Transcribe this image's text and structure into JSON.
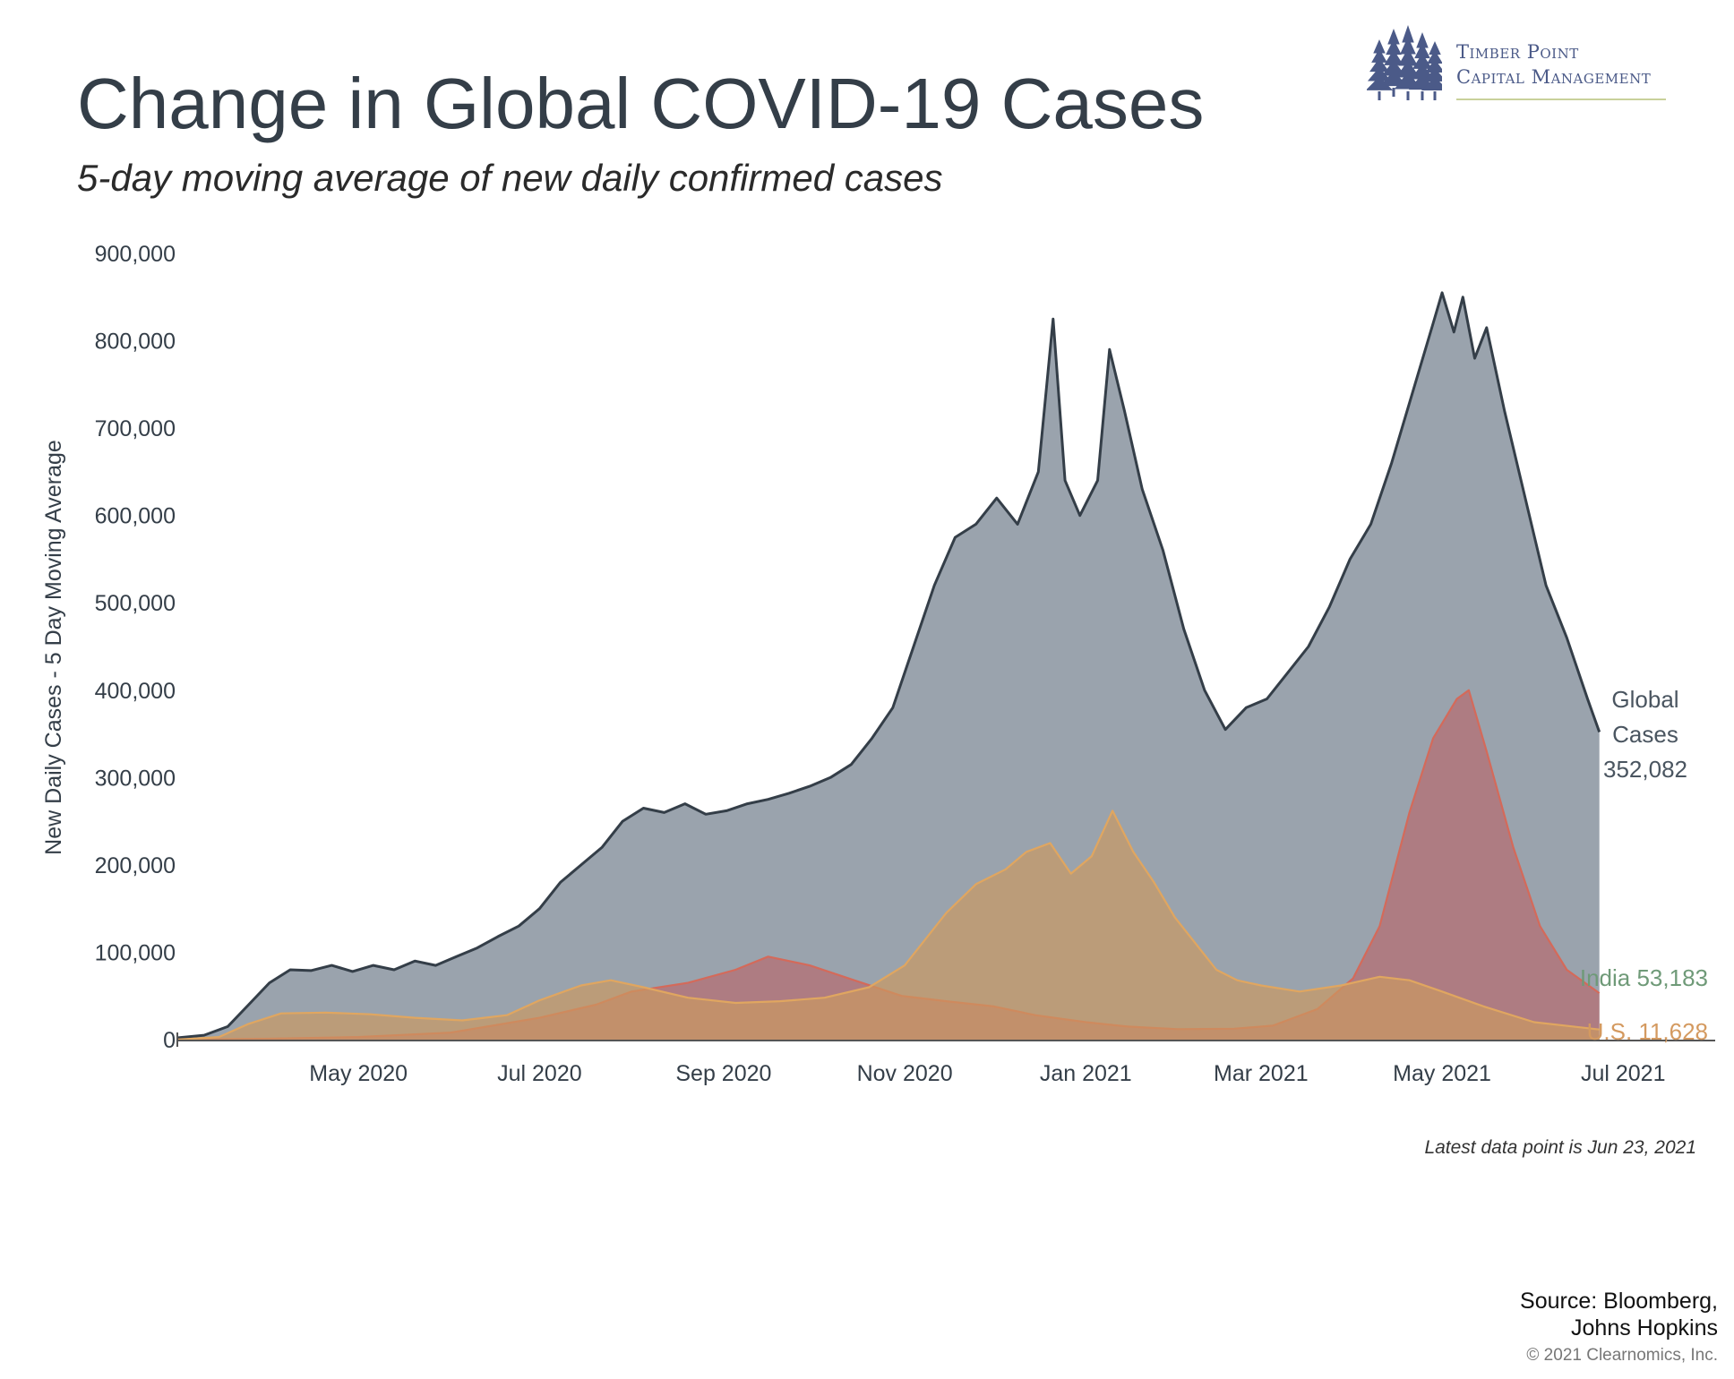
{
  "header": {
    "title": "Change in Global COVID-19 Cases",
    "subtitle": "5-day moving average of new daily confirmed cases"
  },
  "logo": {
    "line1": "Timber Point",
    "line2": "Capital Management",
    "icon": "pine-trees-icon",
    "color": "#4b5a88"
  },
  "footer": {
    "note": "Latest data point is Jun 23, 2021",
    "source_line1": "Source: Bloomberg,",
    "source_line2": "Johns Hopkins",
    "copyright": "© 2021 Clearnomics, Inc."
  },
  "chart_data": {
    "type": "area",
    "ylabel": "New Daily Cases - 5 Day Moving Average",
    "ylim": [
      0,
      900000
    ],
    "yticks": [
      0,
      100000,
      200000,
      300000,
      400000,
      500000,
      600000,
      700000,
      800000,
      900000
    ],
    "ytick_labels": [
      "0",
      "100,000",
      "200,000",
      "300,000",
      "400,000",
      "500,000",
      "600,000",
      "700,000",
      "800,000",
      "900,000"
    ],
    "xlim": [
      "2020-03-01",
      "2021-08-01"
    ],
    "xticks": [
      "2020-05-01",
      "2020-07-01",
      "2020-09-01",
      "2020-11-01",
      "2021-01-01",
      "2021-03-01",
      "2021-05-01",
      "2021-07-01"
    ],
    "xtick_labels": [
      "May 2020",
      "Jul 2020",
      "Sep 2020",
      "Nov 2020",
      "Jan 2021",
      "Mar 2021",
      "May 2021",
      "Jul 2021"
    ],
    "series": [
      {
        "key": "global",
        "label_lines": [
          "Global",
          "Cases",
          "352,082"
        ],
        "fill": "#9aa3ad",
        "stroke": "#343e48",
        "label_color": "#4a5560",
        "points": [
          [
            "2020-03-01",
            2000
          ],
          [
            "2020-03-10",
            5000
          ],
          [
            "2020-03-18",
            15000
          ],
          [
            "2020-03-25",
            40000
          ],
          [
            "2020-04-01",
            65000
          ],
          [
            "2020-04-08",
            80000
          ],
          [
            "2020-04-15",
            79000
          ],
          [
            "2020-04-22",
            85000
          ],
          [
            "2020-04-29",
            78000
          ],
          [
            "2020-05-06",
            85000
          ],
          [
            "2020-05-13",
            80000
          ],
          [
            "2020-05-20",
            90000
          ],
          [
            "2020-05-27",
            85000
          ],
          [
            "2020-06-03",
            95000
          ],
          [
            "2020-06-10",
            105000
          ],
          [
            "2020-06-17",
            118000
          ],
          [
            "2020-06-24",
            130000
          ],
          [
            "2020-07-01",
            150000
          ],
          [
            "2020-07-08",
            180000
          ],
          [
            "2020-07-15",
            200000
          ],
          [
            "2020-07-22",
            220000
          ],
          [
            "2020-07-29",
            250000
          ],
          [
            "2020-08-05",
            265000
          ],
          [
            "2020-08-12",
            260000
          ],
          [
            "2020-08-19",
            270000
          ],
          [
            "2020-08-26",
            258000
          ],
          [
            "2020-09-02",
            262000
          ],
          [
            "2020-09-09",
            270000
          ],
          [
            "2020-09-16",
            275000
          ],
          [
            "2020-09-23",
            282000
          ],
          [
            "2020-09-30",
            290000
          ],
          [
            "2020-10-07",
            300000
          ],
          [
            "2020-10-14",
            315000
          ],
          [
            "2020-10-21",
            345000
          ],
          [
            "2020-10-28",
            380000
          ],
          [
            "2020-11-04",
            450000
          ],
          [
            "2020-11-11",
            520000
          ],
          [
            "2020-11-18",
            575000
          ],
          [
            "2020-11-25",
            590000
          ],
          [
            "2020-12-02",
            620000
          ],
          [
            "2020-12-09",
            590000
          ],
          [
            "2020-12-16",
            650000
          ],
          [
            "2020-12-21",
            825000
          ],
          [
            "2020-12-25",
            640000
          ],
          [
            "2020-12-30",
            600000
          ],
          [
            "2021-01-05",
            640000
          ],
          [
            "2021-01-09",
            790000
          ],
          [
            "2021-01-14",
            720000
          ],
          [
            "2021-01-20",
            630000
          ],
          [
            "2021-01-27",
            560000
          ],
          [
            "2021-02-03",
            470000
          ],
          [
            "2021-02-10",
            400000
          ],
          [
            "2021-02-17",
            355000
          ],
          [
            "2021-02-24",
            380000
          ],
          [
            "2021-03-03",
            390000
          ],
          [
            "2021-03-10",
            420000
          ],
          [
            "2021-03-17",
            450000
          ],
          [
            "2021-03-24",
            495000
          ],
          [
            "2021-03-31",
            550000
          ],
          [
            "2021-04-07",
            590000
          ],
          [
            "2021-04-14",
            660000
          ],
          [
            "2021-04-21",
            740000
          ],
          [
            "2021-04-28",
            820000
          ],
          [
            "2021-05-01",
            855000
          ],
          [
            "2021-05-05",
            810000
          ],
          [
            "2021-05-08",
            850000
          ],
          [
            "2021-05-12",
            780000
          ],
          [
            "2021-05-16",
            815000
          ],
          [
            "2021-05-22",
            720000
          ],
          [
            "2021-05-29",
            620000
          ],
          [
            "2021-06-05",
            520000
          ],
          [
            "2021-06-12",
            460000
          ],
          [
            "2021-06-19",
            390000
          ],
          [
            "2021-06-23",
            352082
          ]
        ]
      },
      {
        "key": "us",
        "label_lines": [
          "U.S. 11,628"
        ],
        "fill": "#cc9a60",
        "fill_opacity": 0.68,
        "stroke": "#e0a660",
        "label_color": "#d49a60",
        "points": [
          [
            "2020-03-01",
            0
          ],
          [
            "2020-03-15",
            3000
          ],
          [
            "2020-03-25",
            18000
          ],
          [
            "2020-04-05",
            30000
          ],
          [
            "2020-04-20",
            31000
          ],
          [
            "2020-05-05",
            29000
          ],
          [
            "2020-05-20",
            25000
          ],
          [
            "2020-06-05",
            22000
          ],
          [
            "2020-06-20",
            28000
          ],
          [
            "2020-07-01",
            45000
          ],
          [
            "2020-07-15",
            62000
          ],
          [
            "2020-07-25",
            68000
          ],
          [
            "2020-08-05",
            60000
          ],
          [
            "2020-08-20",
            48000
          ],
          [
            "2020-09-05",
            42000
          ],
          [
            "2020-09-20",
            44000
          ],
          [
            "2020-10-05",
            48000
          ],
          [
            "2020-10-20",
            60000
          ],
          [
            "2020-11-01",
            85000
          ],
          [
            "2020-11-15",
            145000
          ],
          [
            "2020-11-25",
            178000
          ],
          [
            "2020-12-05",
            195000
          ],
          [
            "2020-12-12",
            215000
          ],
          [
            "2020-12-20",
            225000
          ],
          [
            "2020-12-27",
            190000
          ],
          [
            "2021-01-03",
            210000
          ],
          [
            "2021-01-10",
            262000
          ],
          [
            "2021-01-17",
            215000
          ],
          [
            "2021-01-24",
            180000
          ],
          [
            "2021-01-31",
            140000
          ],
          [
            "2021-02-07",
            110000
          ],
          [
            "2021-02-14",
            80000
          ],
          [
            "2021-02-21",
            68000
          ],
          [
            "2021-03-01",
            62000
          ],
          [
            "2021-03-14",
            55000
          ],
          [
            "2021-03-28",
            62000
          ],
          [
            "2021-04-10",
            72000
          ],
          [
            "2021-04-20",
            68000
          ],
          [
            "2021-05-01",
            55000
          ],
          [
            "2021-05-15",
            38000
          ],
          [
            "2021-06-01",
            20000
          ],
          [
            "2021-06-23",
            11628
          ]
        ]
      },
      {
        "key": "india",
        "label_lines": [
          "India 53,183"
        ],
        "fill": "#b56e72",
        "fill_opacity": 0.72,
        "stroke": "#d46a5a",
        "label_color": "#6f9a78",
        "points": [
          [
            "2020-03-01",
            0
          ],
          [
            "2020-04-01",
            1000
          ],
          [
            "2020-05-01",
            3000
          ],
          [
            "2020-06-01",
            8000
          ],
          [
            "2020-07-01",
            25000
          ],
          [
            "2020-07-20",
            40000
          ],
          [
            "2020-08-01",
            55000
          ],
          [
            "2020-08-20",
            65000
          ],
          [
            "2020-09-05",
            80000
          ],
          [
            "2020-09-16",
            95000
          ],
          [
            "2020-09-30",
            85000
          ],
          [
            "2020-10-15",
            68000
          ],
          [
            "2020-10-31",
            50000
          ],
          [
            "2020-11-15",
            44000
          ],
          [
            "2020-12-01",
            38000
          ],
          [
            "2020-12-15",
            28000
          ],
          [
            "2021-01-01",
            20000
          ],
          [
            "2021-01-15",
            15000
          ],
          [
            "2021-02-01",
            12000
          ],
          [
            "2021-02-20",
            12500
          ],
          [
            "2021-03-05",
            16000
          ],
          [
            "2021-03-20",
            35000
          ],
          [
            "2021-04-01",
            70000
          ],
          [
            "2021-04-10",
            130000
          ],
          [
            "2021-04-20",
            260000
          ],
          [
            "2021-04-28",
            345000
          ],
          [
            "2021-05-06",
            390000
          ],
          [
            "2021-05-10",
            400000
          ],
          [
            "2021-05-16",
            330000
          ],
          [
            "2021-05-25",
            220000
          ],
          [
            "2021-06-03",
            130000
          ],
          [
            "2021-06-12",
            80000
          ],
          [
            "2021-06-23",
            53183
          ]
        ]
      }
    ],
    "grid": false,
    "legend": "none"
  }
}
